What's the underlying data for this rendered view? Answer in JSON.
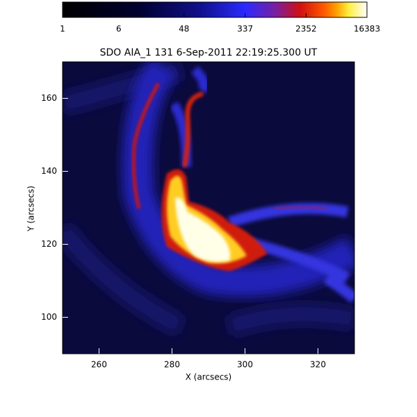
{
  "chart_data": {
    "type": "image",
    "title": "SDO AIA_1 131  6-Sep-2011 22:19:25.300 UT",
    "xlabel": "X (arcsecs)",
    "ylabel": "Y (arcsecs)",
    "xlim": [
      250,
      330
    ],
    "xticks": [
      260,
      280,
      300,
      320
    ],
    "ylim": [
      90,
      170
    ],
    "yticks": [
      100,
      120,
      140,
      160
    ],
    "colorbar": {
      "scale": "log",
      "lim": [
        1,
        16383
      ],
      "ticks": [
        1,
        6,
        48,
        337,
        2352,
        16383
      ]
    }
  }
}
